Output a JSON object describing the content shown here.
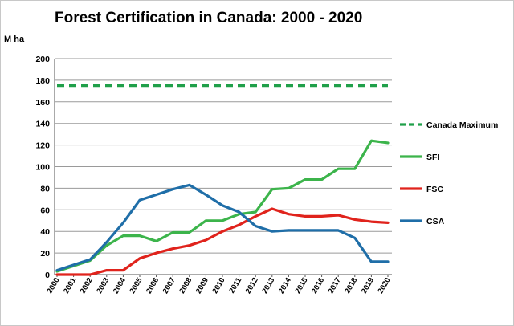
{
  "chart_data": {
    "type": "line",
    "title": "Forest Certification in Canada: 2000 - 2020",
    "ylabel": "M ha",
    "xlabel": "",
    "ylim": [
      0,
      200
    ],
    "yticks": [
      0,
      20,
      40,
      60,
      80,
      100,
      120,
      140,
      160,
      180,
      200
    ],
    "grid": true,
    "legend_position": "right",
    "categories": [
      "2000",
      "2001",
      "2002",
      "2003",
      "2004",
      "2005",
      "2006",
      "2007",
      "2008",
      "2009",
      "2010",
      "2011",
      "2012",
      "2013",
      "2014",
      "2015",
      "2016",
      "2017",
      "2018",
      "2019",
      "2020"
    ],
    "series": [
      {
        "name": "Canada Maximum",
        "color": "#20A04A",
        "style": "dashed",
        "values": [
          175,
          175,
          175,
          175,
          175,
          175,
          175,
          175,
          175,
          175,
          175,
          175,
          175,
          175,
          175,
          175,
          175,
          175,
          175,
          175,
          175
        ]
      },
      {
        "name": "SFI",
        "color": "#3CB44B",
        "style": "solid",
        "values": [
          3,
          8,
          13,
          27,
          36,
          36,
          31,
          39,
          39,
          50,
          50,
          56,
          58,
          79,
          80,
          88,
          88,
          98,
          98,
          124,
          122
        ]
      },
      {
        "name": "FSC",
        "color": "#E0231C",
        "style": "solid",
        "values": [
          0,
          0,
          0,
          4,
          4,
          15,
          20,
          24,
          27,
          32,
          40,
          46,
          54,
          61,
          56,
          54,
          54,
          55,
          51,
          49,
          48
        ]
      },
      {
        "name": "CSA",
        "color": "#1F6EA8",
        "style": "solid",
        "values": [
          4,
          9,
          14,
          30,
          48,
          69,
          74,
          79,
          83,
          74,
          64,
          58,
          45,
          40,
          41,
          41,
          41,
          41,
          34,
          12,
          12
        ]
      }
    ]
  }
}
